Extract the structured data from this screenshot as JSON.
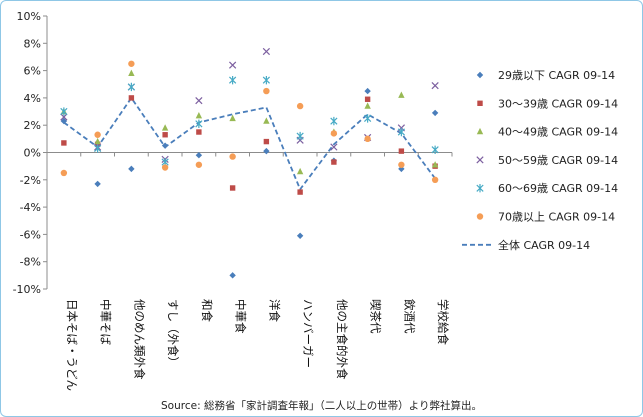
{
  "chart_data": {
    "type": "scatter",
    "categories": [
      "日本そば・うどん",
      "中華そば",
      "他のめん類外食",
      "すし（外食）",
      "和食",
      "中華食",
      "洋食",
      "ハンバーガー",
      "他の主食的外食",
      "喫茶代",
      "飲酒代",
      "学校給食"
    ],
    "ylim": [
      -10,
      10
    ],
    "y_ticks": [
      "10%",
      "8%",
      "6%",
      "4%",
      "2%",
      "0%",
      "-2%",
      "-4%",
      "-6%",
      "-8%",
      "-10%"
    ],
    "grid": "none",
    "legend_position": "right",
    "series": [
      {
        "name": "29歳以下 CAGR 09-14",
        "marker": "diamond",
        "color": "#4a7ebb",
        "values": [
          2.3,
          -2.3,
          -1.2,
          0.5,
          -0.2,
          -9.0,
          0.1,
          -6.1,
          -0.6,
          4.5,
          -1.2,
          2.9
        ]
      },
      {
        "name": "30～39歳 CAGR 09-14",
        "marker": "square",
        "color": "#be4b48",
        "values": [
          0.7,
          0.6,
          4.0,
          1.3,
          1.5,
          -2.6,
          0.8,
          -2.9,
          -0.7,
          3.9,
          0.1,
          -1.0
        ]
      },
      {
        "name": "40～49歳 CAGR 09-14",
        "marker": "triangle",
        "color": "#98b954",
        "values": [
          3.0,
          0.8,
          5.8,
          1.8,
          2.7,
          2.5,
          2.3,
          -1.4,
          1.5,
          3.4,
          4.2,
          -0.9
        ]
      },
      {
        "name": "50～59歳 CAGR 09-14",
        "marker": "x",
        "color": "#7d60a0",
        "values": [
          2.6,
          0.4,
          4.8,
          -0.5,
          3.8,
          6.4,
          7.4,
          0.9,
          0.4,
          1.1,
          1.8,
          4.9
        ]
      },
      {
        "name": "60～69歳 CAGR 09-14",
        "marker": "star",
        "color": "#46aac5",
        "values": [
          3.0,
          0.3,
          4.8,
          -0.7,
          2.1,
          5.3,
          5.3,
          1.2,
          2.3,
          2.5,
          1.5,
          0.2
        ]
      },
      {
        "name": "70歳以上 CAGR 09-14",
        "marker": "circle",
        "color": "#f59d56",
        "values": [
          -1.5,
          1.3,
          6.5,
          -1.1,
          -0.9,
          -0.3,
          4.5,
          3.4,
          1.4,
          1.0,
          -0.9,
          -2.0
        ]
      },
      {
        "name": "全体 CAGR 09-14",
        "marker": "dashed-line",
        "color": "#4a7ebb",
        "values": [
          2.2,
          0.4,
          4.0,
          0.4,
          2.2,
          2.8,
          3.3,
          -2.7,
          0.6,
          2.8,
          1.4,
          -1.9
        ]
      }
    ]
  },
  "source": "Source: 総務省「家計調査年報」（二人以上の世帯）より弊社算出。"
}
